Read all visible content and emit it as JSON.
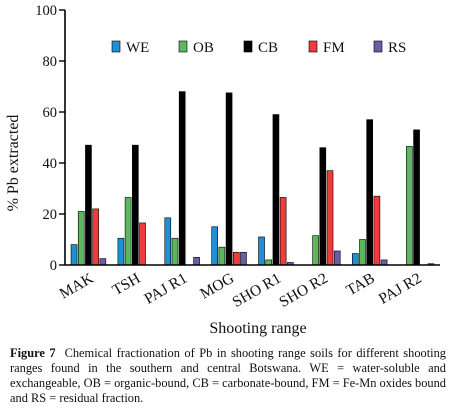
{
  "chart_data": {
    "type": "bar",
    "ylabel": "% Pb extracted",
    "xlabel": "Shooting range",
    "ylim": [
      0,
      100
    ],
    "yticks": [
      "0",
      "20",
      "40",
      "60",
      "80",
      "100"
    ],
    "categories": [
      "MAK",
      "TSH",
      "PAJ R1",
      "MOG",
      "SHO R1",
      "SHO R2",
      "TAB",
      "PAJ R2"
    ],
    "legend_position": "top",
    "grid": false,
    "series": [
      {
        "name": "WE",
        "color": "#1f8fd6",
        "values": [
          8,
          10.5,
          18.5,
          15,
          11,
          0,
          4.5,
          0
        ]
      },
      {
        "name": "OB",
        "color": "#5cb85c",
        "values": [
          21,
          26.5,
          10.5,
          7,
          2,
          11.5,
          10,
          46.5
        ]
      },
      {
        "name": "CB",
        "color": "#000000",
        "values": [
          47,
          47,
          68,
          67.5,
          59,
          46,
          57,
          53
        ]
      },
      {
        "name": "FM",
        "color": "#ee3b3b",
        "values": [
          22,
          16.5,
          0,
          5,
          26.5,
          37,
          27,
          0
        ]
      },
      {
        "name": "RS",
        "color": "#6e5aa8",
        "values": [
          2.5,
          0,
          3,
          5,
          1,
          5.5,
          2,
          0.5
        ]
      }
    ]
  },
  "caption": {
    "label": "Figure 7",
    "text": "Chemical fractionation of Pb in shooting range soils for different shooting ranges found in the southern and central Botswana. WE = water-soluble and exchangeable, OB = organic-bound, CB = carbonate-bound, FM = Fe-Mn oxides bound and RS = residual fraction."
  }
}
